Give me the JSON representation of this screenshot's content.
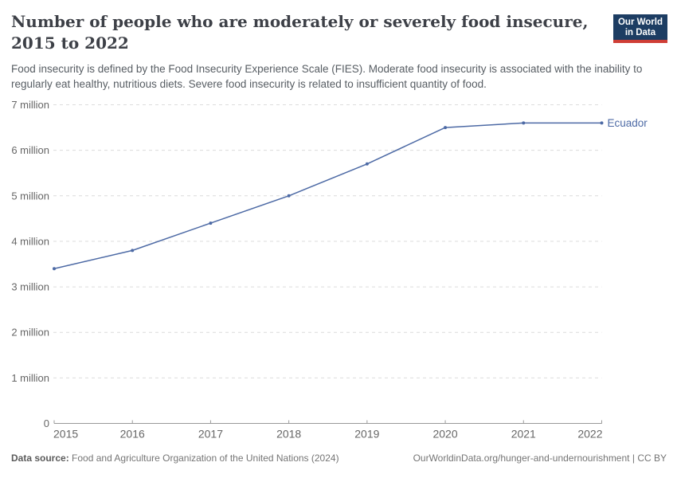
{
  "header": {
    "title": "Number of people who are moderately or severely food insecure, 2015 to 2022",
    "subtitle": "Food insecurity is defined by the Food Insecurity Experience Scale (FIES). Moderate food insecurity is associated with the inability to regularly eat healthy, nutritious diets. Severe food insecurity is related to insufficient quantity of food."
  },
  "logo": {
    "line1": "Our World",
    "line2": "in Data",
    "bg_color": "#1d3d63",
    "accent_color": "#cf3e36"
  },
  "chart_data": {
    "type": "line",
    "x": [
      2015,
      2016,
      2017,
      2018,
      2019,
      2020,
      2021,
      2022
    ],
    "series": [
      {
        "name": "Ecuador",
        "values": [
          3400000,
          3800000,
          4400000,
          5000000,
          5700000,
          6500000,
          6600000,
          6600000
        ],
        "color": "#4d6aa5"
      }
    ],
    "title": "Number of people who are moderately or severely food insecure, 2015 to 2022",
    "xlabel": "",
    "ylabel": "",
    "ylim": [
      0,
      7000000
    ],
    "grid": true,
    "gridline_color": "#dcdcdc",
    "axis_color": "#999999",
    "tick_label_color": "#666666",
    "legend_position": "end-of-line",
    "yticks": [
      {
        "value": 0,
        "label": "0"
      },
      {
        "value": 1000000,
        "label": "1 million"
      },
      {
        "value": 2000000,
        "label": "2 million"
      },
      {
        "value": 3000000,
        "label": "3 million"
      },
      {
        "value": 4000000,
        "label": "4 million"
      },
      {
        "value": 5000000,
        "label": "5 million"
      },
      {
        "value": 6000000,
        "label": "6 million"
      },
      {
        "value": 7000000,
        "label": "7 million"
      }
    ]
  },
  "footer": {
    "source_label": "Data source:",
    "source_value": "Food and Agriculture Organization of the United Nations (2024)",
    "url": "OurWorldinData.org/hunger-and-undernourishment",
    "separator": "|",
    "license": "CC BY"
  }
}
